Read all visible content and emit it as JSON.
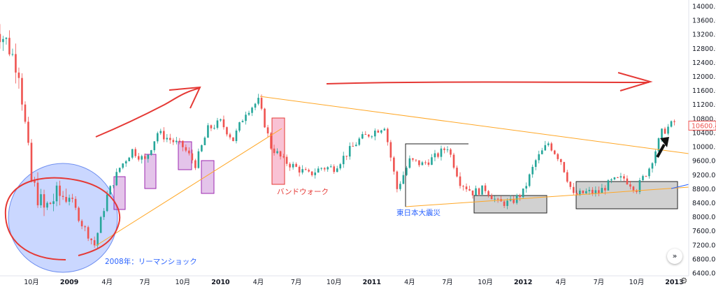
{
  "chart_data": {
    "type": "candlestick",
    "title": "",
    "xlabel": "",
    "ylabel": "",
    "ylim": [
      6400,
      14000
    ],
    "y_ticks": [
      "14000.00",
      "13600.00",
      "13200.00",
      "12800.00",
      "12400.00",
      "12000.00",
      "11600.00",
      "11200.00",
      "10800.00",
      "10400.00",
      "10000.00",
      "9600.00",
      "9200.00",
      "8800.00",
      "8400.00",
      "8000.00",
      "7600.00",
      "7200.00",
      "6800.00",
      "6400.00"
    ],
    "x_ticks": [
      {
        "label": "10月",
        "date": "2008-10",
        "bold": false
      },
      {
        "label": "2009",
        "date": "2009-01",
        "bold": true
      },
      {
        "label": "4月",
        "date": "2009-04",
        "bold": false
      },
      {
        "label": "7月",
        "date": "2009-07",
        "bold": false
      },
      {
        "label": "10月",
        "date": "2009-10",
        "bold": false
      },
      {
        "label": "2010",
        "date": "2010-01",
        "bold": true
      },
      {
        "label": "4月",
        "date": "2010-04",
        "bold": false
      },
      {
        "label": "7月",
        "date": "2010-07",
        "bold": false
      },
      {
        "label": "10月",
        "date": "2010-10",
        "bold": false
      },
      {
        "label": "2011",
        "date": "2011-01",
        "bold": true
      },
      {
        "label": "4月",
        "date": "2011-04",
        "bold": false
      },
      {
        "label": "7月",
        "date": "2011-07",
        "bold": false
      },
      {
        "label": "10月",
        "date": "2011-10",
        "bold": false
      },
      {
        "label": "2012",
        "date": "2012-01",
        "bold": true
      },
      {
        "label": "4月",
        "date": "2012-04",
        "bold": false
      },
      {
        "label": "7月",
        "date": "2012-07",
        "bold": false
      },
      {
        "label": "10月",
        "date": "2012-10",
        "bold": false
      },
      {
        "label": "2013",
        "date": "2013-01",
        "bold": true
      }
    ],
    "series": [
      {
        "name": "",
        "up_color": "#26a69a",
        "down_color": "#ef5350",
        "anchors": [
          [
            "2008-07",
            13500
          ],
          [
            "2008-08",
            13000
          ],
          [
            "2008-09",
            12200
          ],
          [
            "2008-10",
            9000
          ],
          [
            "2008-11",
            8200
          ],
          [
            "2008-12",
            8600
          ],
          [
            "2009-01",
            8600
          ],
          [
            "2009-02",
            7800
          ],
          [
            "2009-03",
            7200
          ],
          [
            "2009-04",
            8600
          ],
          [
            "2009-05",
            9400
          ],
          [
            "2009-06",
            9900
          ],
          [
            "2009-07",
            9600
          ],
          [
            "2009-08",
            10400
          ],
          [
            "2009-09",
            10200
          ],
          [
            "2009-10",
            10000
          ],
          [
            "2009-11",
            9500
          ],
          [
            "2009-12",
            10500
          ],
          [
            "2010-01",
            10700
          ],
          [
            "2010-02",
            10200
          ],
          [
            "2010-03",
            11000
          ],
          [
            "2010-04",
            11300
          ],
          [
            "2010-05",
            10000
          ],
          [
            "2010-06",
            9600
          ],
          [
            "2010-07",
            9400
          ],
          [
            "2010-08",
            9200
          ],
          [
            "2010-09",
            9400
          ],
          [
            "2010-10",
            9400
          ],
          [
            "2010-11",
            9800
          ],
          [
            "2010-12",
            10200
          ],
          [
            "2011-01",
            10400
          ],
          [
            "2011-02",
            10600
          ],
          [
            "2011-03",
            8800
          ],
          [
            "2011-04",
            9600
          ],
          [
            "2011-05",
            9500
          ],
          [
            "2011-06",
            9700
          ],
          [
            "2011-07",
            10000
          ],
          [
            "2011-08",
            9000
          ],
          [
            "2011-09",
            8700
          ],
          [
            "2011-10",
            8800
          ],
          [
            "2011-11",
            8400
          ],
          [
            "2011-12",
            8400
          ],
          [
            "2012-01",
            8700
          ],
          [
            "2012-02",
            9600
          ],
          [
            "2012-03",
            10100
          ],
          [
            "2012-04",
            9600
          ],
          [
            "2012-05",
            8600
          ],
          [
            "2012-06",
            8700
          ],
          [
            "2012-07",
            8700
          ],
          [
            "2012-08",
            9000
          ],
          [
            "2012-09",
            9100
          ],
          [
            "2012-10",
            8800
          ],
          [
            "2012-11",
            9400
          ],
          [
            "2012-12",
            10400
          ],
          [
            "2013-01",
            10700
          ]
        ]
      }
    ],
    "last_price": {
      "label": "10600.44",
      "value": 10600.44,
      "color": "#ef5350"
    },
    "annotations": [
      {
        "text": "2008年：リーマンショック",
        "color": "#2962ff"
      },
      {
        "text": "バンドウォーク",
        "color": "#e53935"
      },
      {
        "text": "東日本大震災",
        "color": "#2962ff"
      }
    ],
    "grid": false,
    "colors": {
      "trendline": "#ffa726",
      "red_arrow": "#e53935",
      "circle_fill": "#9fb7ff",
      "purple_box": "#ce93d8",
      "pink_box": "#f48fb1",
      "gray_box": "#bdbdbd",
      "blue_line": "#2962ff"
    }
  },
  "controls": {
    "expand_label": "»",
    "settings_icon": "⚙"
  }
}
